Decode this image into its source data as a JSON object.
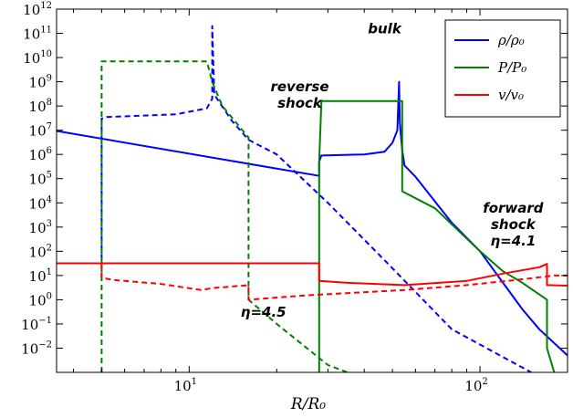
{
  "chart_data": {
    "type": "line",
    "title": "",
    "xlabel": "R/R₀",
    "ylabel": "",
    "xscale": "log",
    "yscale": "log",
    "xlim": [
      3.5,
      200
    ],
    "ylim": [
      0.001,
      1000000000000
    ],
    "grid": false,
    "legend_position": "top-right",
    "x_ticks": [
      {
        "value": 10,
        "base": "10",
        "exp": "1"
      },
      {
        "value": 100,
        "base": "10",
        "exp": "2"
      }
    ],
    "y_ticks": [
      {
        "value": 1000000000000.0,
        "base": "10",
        "exp": "12"
      },
      {
        "value": 100000000000.0,
        "base": "10",
        "exp": "11"
      },
      {
        "value": 10000000000.0,
        "base": "10",
        "exp": "10"
      },
      {
        "value": 1000000000.0,
        "base": "10",
        "exp": "9"
      },
      {
        "value": 100000000.0,
        "base": "10",
        "exp": "8"
      },
      {
        "value": 10000000.0,
        "base": "10",
        "exp": "7"
      },
      {
        "value": 1000000.0,
        "base": "10",
        "exp": "6"
      },
      {
        "value": 100000.0,
        "base": "10",
        "exp": "5"
      },
      {
        "value": 10000.0,
        "base": "10",
        "exp": "4"
      },
      {
        "value": 1000.0,
        "base": "10",
        "exp": "3"
      },
      {
        "value": 100.0,
        "base": "10",
        "exp": "2"
      },
      {
        "value": 10.0,
        "base": "10",
        "exp": "1"
      },
      {
        "value": 1.0,
        "base": "10",
        "exp": "0"
      },
      {
        "value": 0.1,
        "base": "10",
        "exp": "−1"
      },
      {
        "value": 0.01,
        "base": "10",
        "exp": "−2"
      }
    ],
    "legend": [
      {
        "key": "rho",
        "label": "ρ/ρ₀",
        "color": "#0000ff"
      },
      {
        "key": "P",
        "label": "P/P₀",
        "color": "#008000"
      },
      {
        "key": "v",
        "label": "v/v₀",
        "color": "#ff0000"
      }
    ],
    "series": [
      {
        "key": "rho",
        "style": "solid",
        "color": "#0000ff",
        "x": [
          3.5,
          28,
          28,
          28.5,
          40,
          47,
          50,
          52,
          52.7,
          53,
          54,
          55,
          60,
          80,
          100,
          120,
          140,
          160,
          200
        ],
        "y": [
          9300000.0,
          130000.0,
          500000.0,
          900000.0,
          1000000.0,
          1300000.0,
          3000000.0,
          10000000.0,
          1000000000.0,
          20000000.0,
          1500000.0,
          350000.0,
          120000.0,
          1500.0,
          100.0,
          5.0,
          0.4,
          0.06,
          0.005
        ]
      },
      {
        "key": "rho",
        "style": "dashed",
        "color": "#0000ff",
        "x": [
          5.0,
          5.0,
          5.2,
          9.0,
          11.5,
          12.0,
          12.0,
          12.2,
          14.0,
          16.0,
          20,
          30,
          50,
          80,
          150
        ],
        "y": [
          8.0,
          30000000.0,
          35000000.0,
          45000000.0,
          80000000.0,
          200000000.0,
          200000000000.0,
          300000000.0,
          25000000.0,
          4000000.0,
          1000000.0,
          10000.0,
          20.0,
          0.06,
          0.001
        ]
      },
      {
        "key": "P",
        "style": "solid",
        "color": "#008000",
        "x": [
          28,
          28,
          28.5,
          53.5,
          54,
          54,
          70,
          100,
          120,
          140,
          170,
          170,
          180
        ],
        "y": [
          0.001,
          500000.0,
          160000000.0,
          160000000.0,
          160000000.0,
          30000.0,
          6000.0,
          100.0,
          15.0,
          5.0,
          1.0,
          0.01,
          0.001
        ]
      },
      {
        "key": "P",
        "style": "dashed",
        "color": "#008000",
        "x": [
          5.0,
          5.0,
          11.5,
          12.0,
          13.0,
          16.0,
          16.0,
          20,
          30,
          35
        ],
        "y": [
          0.001,
          7000000000.0,
          7000000000.0,
          1000000000.0,
          100000000.0,
          5000000.0,
          1.0,
          0.1,
          0.002,
          0.001
        ]
      },
      {
        "key": "v",
        "style": "solid",
        "color": "#ff0000",
        "x": [
          3.5,
          28,
          28,
          35,
          55,
          90,
          120,
          160,
          170,
          170,
          200
        ],
        "y": [
          32.0,
          32.0,
          6.0,
          5.0,
          4.0,
          6.0,
          12.0,
          22.0,
          30.0,
          4.0,
          3.8
        ]
      },
      {
        "key": "v",
        "style": "dashed",
        "color": "#ff0000",
        "x": [
          5.0,
          5.0,
          5.5,
          8,
          11,
          12,
          16,
          16,
          25,
          55,
          90,
          140,
          180,
          200
        ],
        "y": [
          32.0,
          8.0,
          6.5,
          4.5,
          2.5,
          3.0,
          4.0,
          1.0,
          1.5,
          2.5,
          4.0,
          7.0,
          10.0,
          10.0
        ]
      }
    ],
    "annotations": [
      {
        "id": "bulk",
        "lines": [
          "bulk"
        ],
        "x": 47,
        "y": 100000000000.0
      },
      {
        "id": "reverse-shock",
        "lines": [
          "reverse",
          "shock"
        ],
        "x": 24,
        "y": 400000000.0
      },
      {
        "id": "forward-shock",
        "lines": [
          "forward",
          "shock",
          "η=4.1"
        ],
        "x": 130,
        "y": 4000.0
      },
      {
        "id": "eta-reverse",
        "lines": [
          "η=4.5"
        ],
        "x": 18,
        "y": 0.2
      }
    ]
  }
}
